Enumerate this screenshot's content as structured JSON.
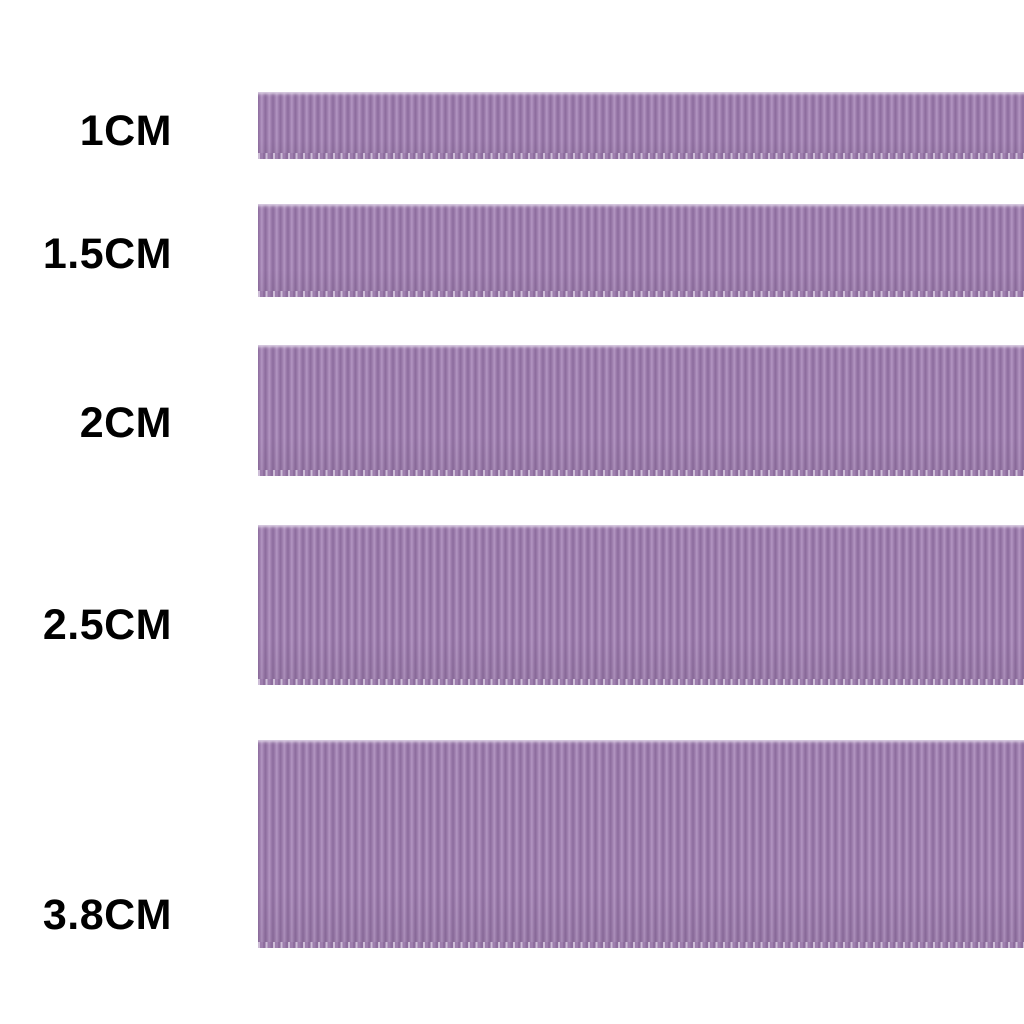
{
  "page": {
    "background_color": "#ffffff",
    "label_text_color": "#000000"
  },
  "ribbon_colors": {
    "rib_light": "#b295c1",
    "rib_mid": "#9d7dad",
    "rib_dark": "#8c6c9d",
    "selvage": "#d8cbe1"
  },
  "sizes": [
    {
      "label": "1CM",
      "value_cm": 1
    },
    {
      "label": "1.5CM",
      "value_cm": 1.5
    },
    {
      "label": "2CM",
      "value_cm": 2
    },
    {
      "label": "2.5CM",
      "value_cm": 2.5
    },
    {
      "label": "3.8CM",
      "value_cm": 3.8
    }
  ]
}
